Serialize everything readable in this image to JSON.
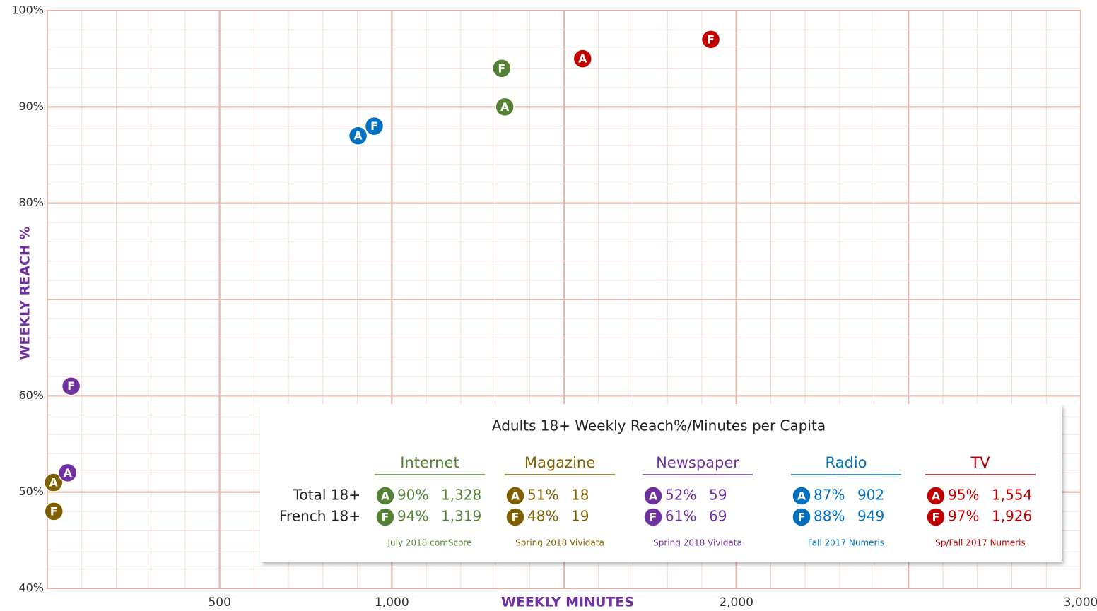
{
  "chart_data": {
    "type": "scatter",
    "x_label": "WEEKLY MINUTES",
    "y_label": "WEEKLY REACH %",
    "xlim": [
      0,
      3000
    ],
    "ylim": [
      40,
      100
    ],
    "xticks": [
      500,
      {
        "value": 1000,
        "label": "1,000"
      },
      {
        "value": 2000,
        "label": "2,000"
      },
      {
        "value": 3000,
        "label": "3,000"
      }
    ],
    "yticks": [
      {
        "value": 40,
        "label": "40%"
      },
      {
        "value": 50,
        "label": "50%"
      },
      {
        "value": 60,
        "label": "60%"
      },
      {
        "value": 80,
        "label": "80%"
      },
      {
        "value": 90,
        "label": "90%"
      },
      {
        "value": 100,
        "label": "100%"
      }
    ],
    "grid": {
      "x_major": 500,
      "x_minor": 100,
      "y_major": 10,
      "y_minor": 2
    },
    "legend_title": "Adults 18+ Weekly Reach%/Minutes per Capita",
    "legend_rows": [
      "Total 18+",
      "French 18+"
    ],
    "series": [
      {
        "name": "Internet",
        "color": "#548235",
        "source": "July 2018 comScore",
        "markers": [
          "A",
          "F"
        ],
        "x": [
          1328,
          1319
        ],
        "x_labels": [
          "1,328",
          "1,319"
        ],
        "values": [
          90,
          94
        ],
        "value_labels": [
          "90%",
          "94%"
        ]
      },
      {
        "name": "Magazine",
        "color": "#7f6000",
        "source": "Spring 2018 Vividata",
        "markers": [
          "A",
          "F"
        ],
        "x": [
          18,
          19
        ],
        "x_labels": [
          "18",
          "19"
        ],
        "values": [
          51,
          48
        ],
        "value_labels": [
          "51%",
          "48%"
        ]
      },
      {
        "name": "Newspaper",
        "color": "#7030a0",
        "source": "Spring 2018 Vividata",
        "markers": [
          "A",
          "F"
        ],
        "x": [
          59,
          69
        ],
        "x_labels": [
          "59",
          "69"
        ],
        "values": [
          52,
          61
        ],
        "value_labels": [
          "52%",
          "61%"
        ]
      },
      {
        "name": "Radio",
        "color": "#0070c0",
        "source": "Fall 2017 Numeris",
        "markers": [
          "A",
          "F"
        ],
        "x": [
          902,
          949
        ],
        "x_labels": [
          "902",
          "949"
        ],
        "values": [
          87,
          88
        ],
        "value_labels": [
          "87%",
          "88%"
        ]
      },
      {
        "name": "TV",
        "color": "#c00000",
        "source": "Sp/Fall 2017 Numeris",
        "markers": [
          "A",
          "F"
        ],
        "x": [
          1554,
          1926
        ],
        "x_labels": [
          "1,554",
          "1,926"
        ],
        "values": [
          95,
          97
        ],
        "value_labels": [
          "95%",
          "97%"
        ]
      }
    ]
  }
}
